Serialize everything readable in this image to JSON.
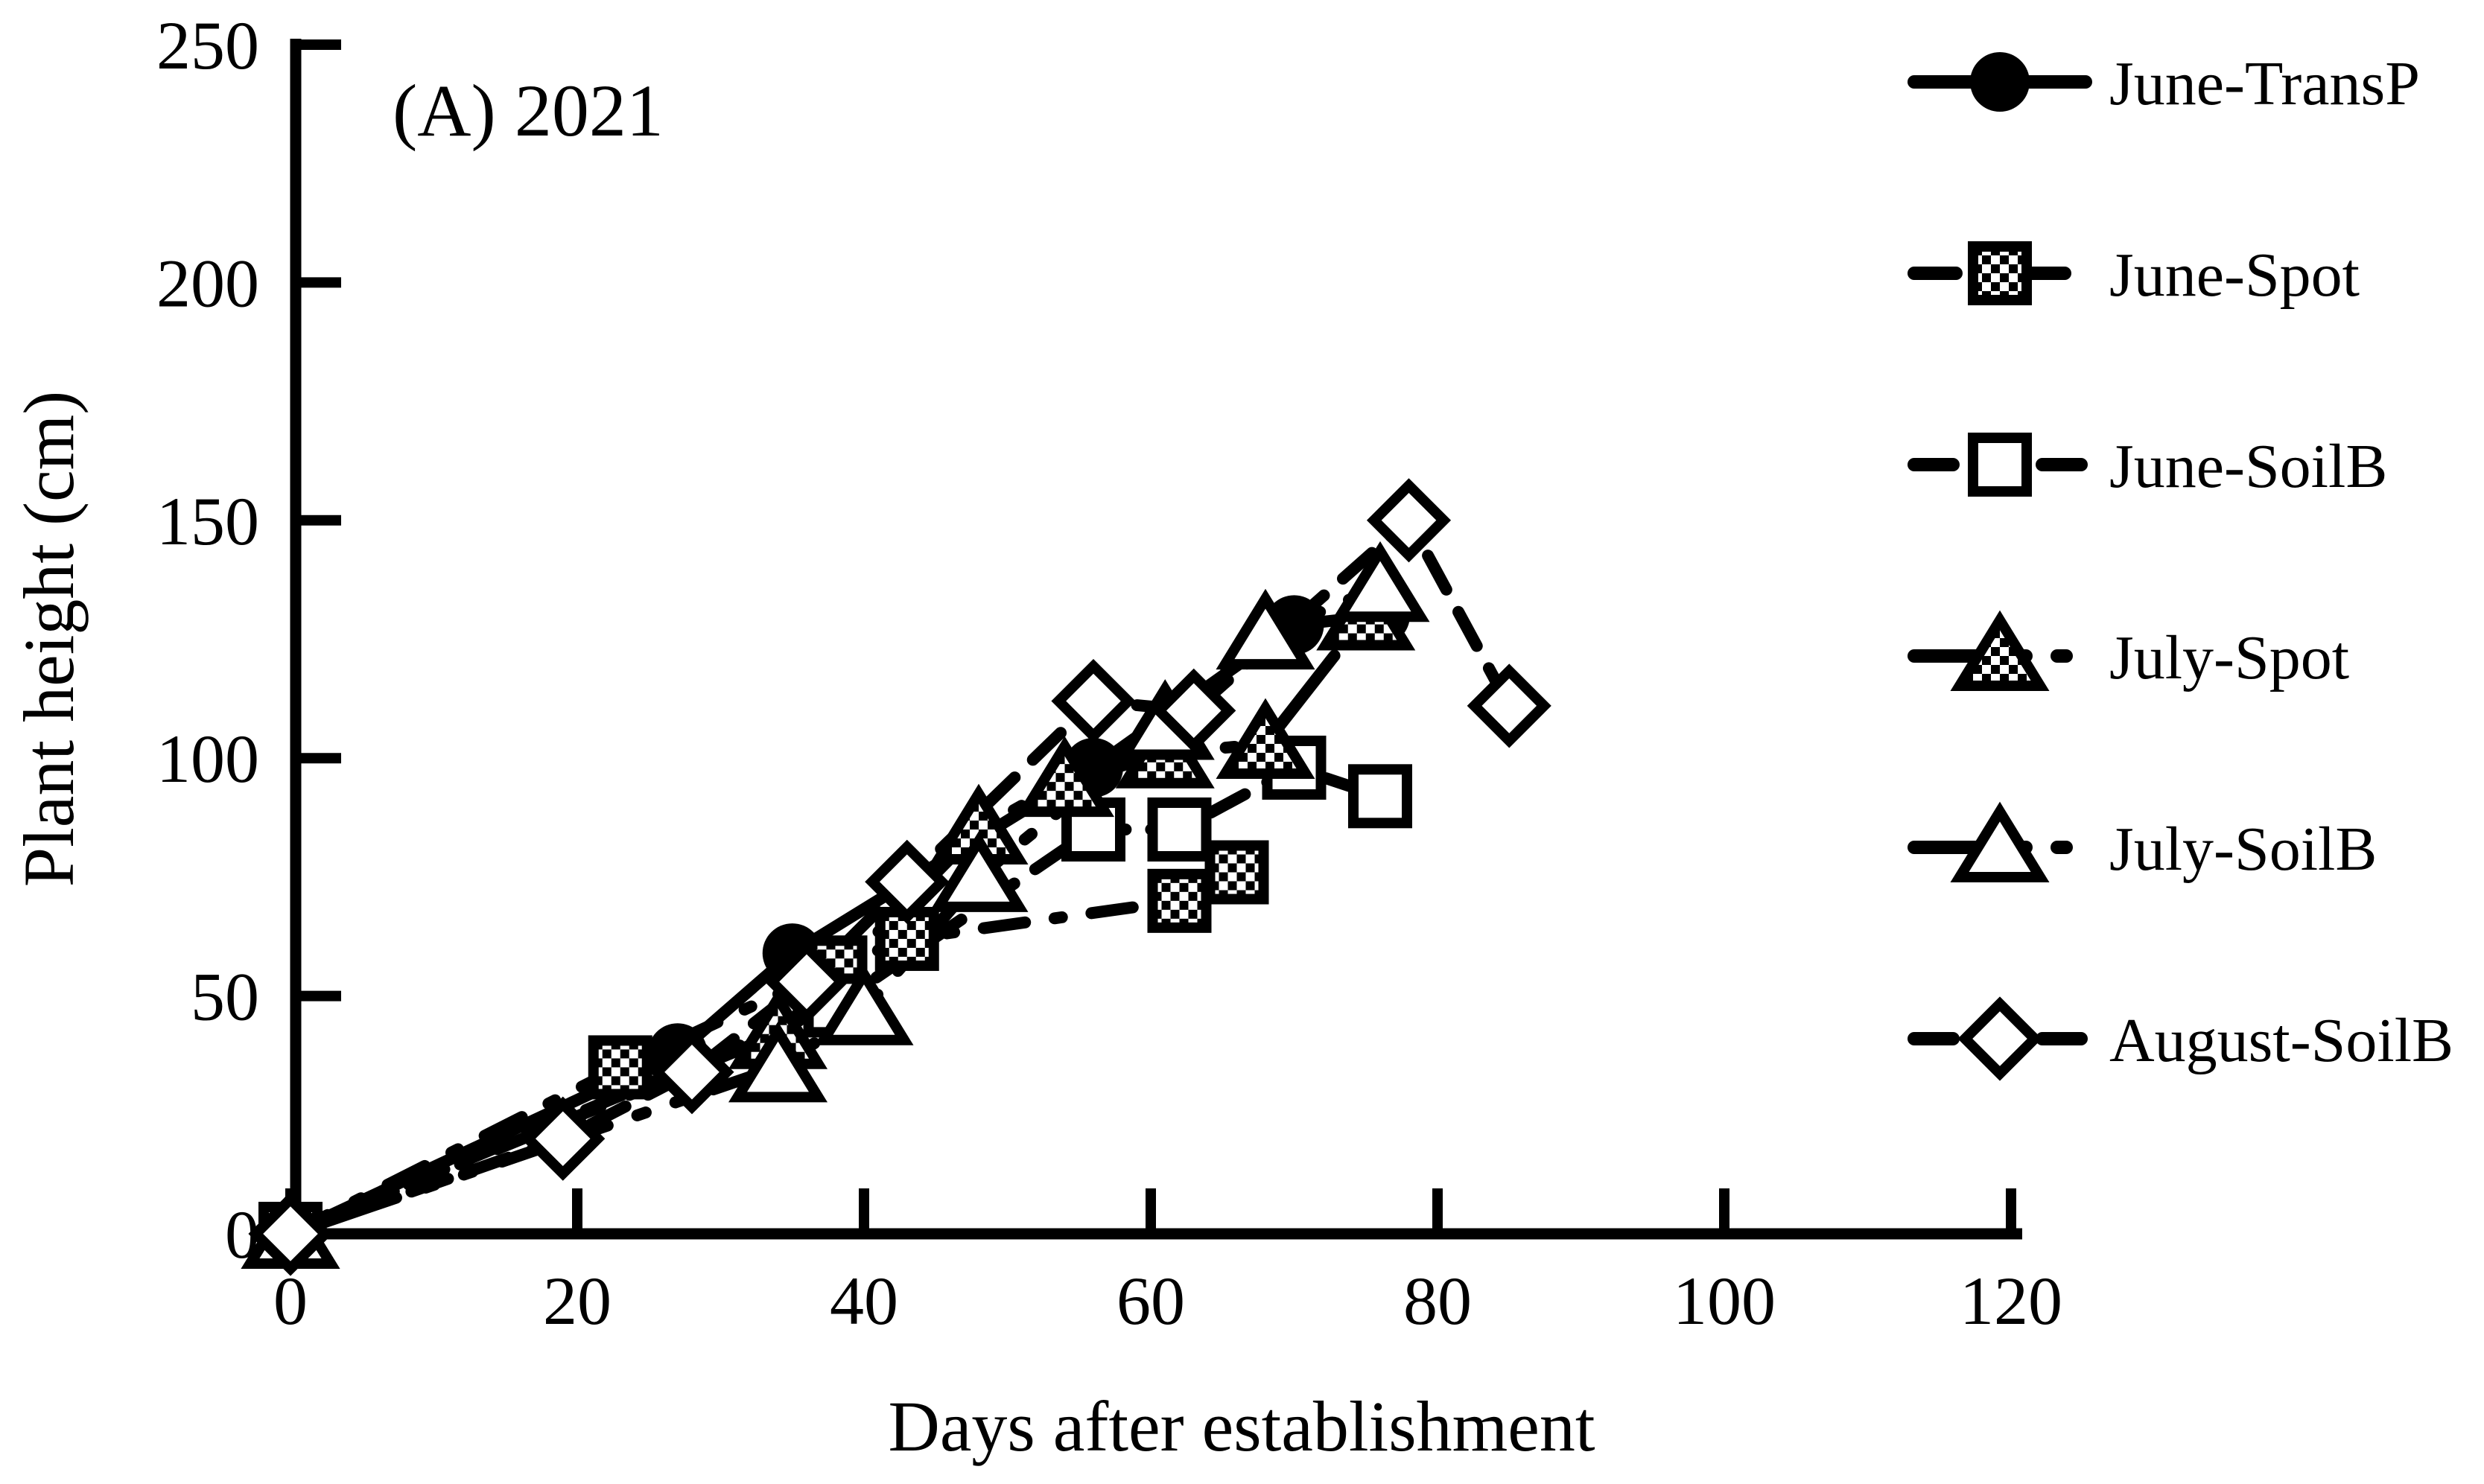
{
  "title": "(A) 2021",
  "chart_data": {
    "type": "line",
    "title": "(A) 2021",
    "xlabel": "Days after establishment",
    "ylabel": "Plant height (cm)",
    "xlim": [
      0,
      120
    ],
    "ylim": [
      0,
      250
    ],
    "x_ticks": [
      0,
      20,
      40,
      60,
      80,
      100,
      120
    ],
    "y_ticks": [
      0,
      50,
      100,
      150,
      200,
      250
    ],
    "grid": "off",
    "legend_position": "right",
    "colors": {
      "foreground": "#000000",
      "background": "#ffffff"
    },
    "series": [
      {
        "name": "June-TransP",
        "marker": "filled-circle",
        "line_style": "solid",
        "points": [
          [
            0,
            0
          ],
          [
            27,
            38
          ],
          [
            35,
            59
          ],
          [
            56,
            98
          ],
          [
            70,
            128
          ],
          [
            76,
            130
          ]
        ]
      },
      {
        "name": "June-Spot",
        "marker": "checkered-square",
        "line_style": "dash-dot",
        "points": [
          [
            0,
            0
          ],
          [
            23,
            35
          ],
          [
            38,
            56
          ],
          [
            43,
            62
          ],
          [
            62,
            70
          ],
          [
            66,
            76
          ]
        ]
      },
      {
        "name": "June-SoilB",
        "marker": "open-square",
        "line_style": "dashed",
        "points": [
          [
            0,
            0
          ],
          [
            38,
            48
          ],
          [
            56,
            85
          ],
          [
            62,
            85
          ],
          [
            70,
            98
          ],
          [
            76,
            92
          ]
        ]
      },
      {
        "name": "July-Spot",
        "marker": "checkered-triangle",
        "line_style": "dash-dot-dot",
        "points": [
          [
            0,
            0
          ],
          [
            34,
            42
          ],
          [
            48,
            85
          ],
          [
            54,
            95
          ],
          [
            61,
            101
          ],
          [
            68,
            103
          ],
          [
            75,
            130
          ]
        ]
      },
      {
        "name": "July-SoilB",
        "marker": "open-triangle",
        "line_style": "dash-dot-dot",
        "points": [
          [
            0,
            0
          ],
          [
            34,
            35
          ],
          [
            40,
            47
          ],
          [
            48,
            75
          ],
          [
            61,
            107
          ],
          [
            68,
            126
          ],
          [
            76,
            136
          ]
        ]
      },
      {
        "name": "August-SoilB",
        "marker": "open-diamond",
        "line_style": "dashed",
        "points": [
          [
            0,
            0
          ],
          [
            19,
            20
          ],
          [
            28,
            34
          ],
          [
            36,
            53
          ],
          [
            43,
            74
          ],
          [
            56,
            112
          ],
          [
            63,
            110
          ],
          [
            78,
            150
          ],
          [
            85,
            111
          ]
        ]
      }
    ]
  }
}
